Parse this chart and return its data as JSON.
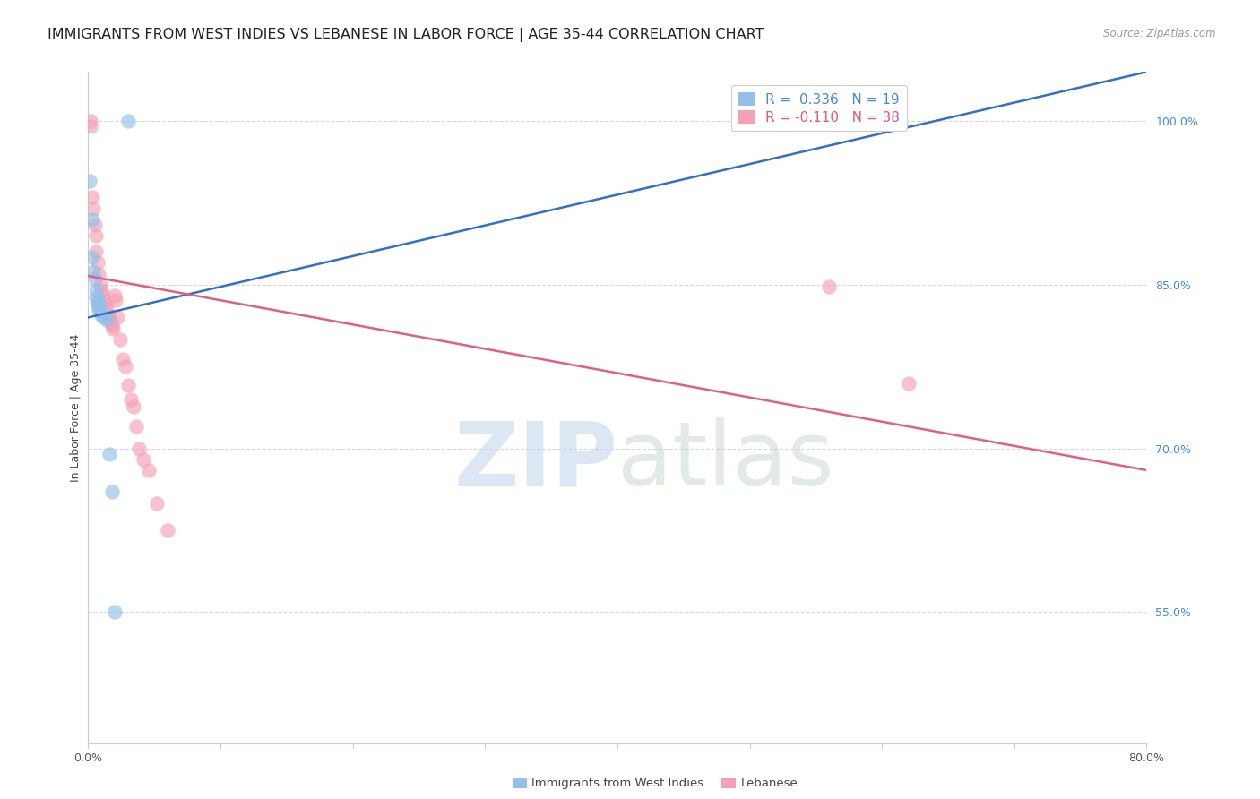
{
  "title": "IMMIGRANTS FROM WEST INDIES VS LEBANESE IN LABOR FORCE | AGE 35-44 CORRELATION CHART",
  "source": "Source: ZipAtlas.com",
  "ylabel": "In Labor Force | Age 35-44",
  "right_yticks": [
    0.55,
    0.7,
    0.85,
    1.0
  ],
  "right_yticklabels": [
    "55.0%",
    "70.0%",
    "85.0%",
    "100.0%"
  ],
  "xmin": 0.0,
  "xmax": 0.8,
  "ymin": 0.43,
  "ymax": 1.045,
  "west_indies_R": 0.336,
  "west_indies_N": 19,
  "lebanese_R": -0.11,
  "lebanese_N": 38,
  "west_indies_color": "#92c0e8",
  "lebanese_color": "#f4a0b5",
  "trend_blue": "#3070c8",
  "trend_pink": "#e06080",
  "west_indies_x": [
    0.001,
    0.003,
    0.003,
    0.004,
    0.005,
    0.006,
    0.006,
    0.007,
    0.007,
    0.008,
    0.008,
    0.009,
    0.01,
    0.012,
    0.014,
    0.016,
    0.018,
    0.02,
    0.03
  ],
  "west_indies_y": [
    0.945,
    0.91,
    0.875,
    0.862,
    0.856,
    0.845,
    0.838,
    0.835,
    0.833,
    0.83,
    0.828,
    0.825,
    0.822,
    0.82,
    0.818,
    0.695,
    0.66,
    0.55,
    1.0
  ],
  "lebanese_x": [
    0.002,
    0.002,
    0.003,
    0.004,
    0.005,
    0.006,
    0.006,
    0.007,
    0.008,
    0.009,
    0.01,
    0.011,
    0.012,
    0.013,
    0.014,
    0.015,
    0.016,
    0.017,
    0.018,
    0.019,
    0.02,
    0.021,
    0.022,
    0.024,
    0.026,
    0.028,
    0.03,
    0.032,
    0.034,
    0.036,
    0.038,
    0.042,
    0.046,
    0.052,
    0.06,
    0.5,
    0.56,
    0.62
  ],
  "lebanese_y": [
    1.0,
    0.995,
    0.93,
    0.92,
    0.905,
    0.895,
    0.88,
    0.87,
    0.86,
    0.85,
    0.845,
    0.84,
    0.835,
    0.832,
    0.828,
    0.822,
    0.818,
    0.815,
    0.812,
    0.81,
    0.84,
    0.836,
    0.82,
    0.8,
    0.782,
    0.775,
    0.758,
    0.745,
    0.738,
    0.72,
    0.7,
    0.69,
    0.68,
    0.65,
    0.625,
    1.0,
    0.848,
    0.76
  ],
  "wi_trend_x0": 0.0,
  "wi_trend_y0": 0.82,
  "wi_trend_x1": 0.8,
  "wi_trend_y1": 1.045,
  "lb_trend_x0": 0.0,
  "lb_trend_y0": 0.858,
  "lb_trend_x1": 0.8,
  "lb_trend_y1": 0.68,
  "watermark_zip": "ZIP",
  "watermark_atlas": "atlas",
  "background_color": "#ffffff",
  "grid_color": "#d8d8d8",
  "axis_color": "#cccccc",
  "title_fontsize": 11.5,
  "label_fontsize": 9,
  "tick_fontsize": 9,
  "legend_fontsize": 11
}
